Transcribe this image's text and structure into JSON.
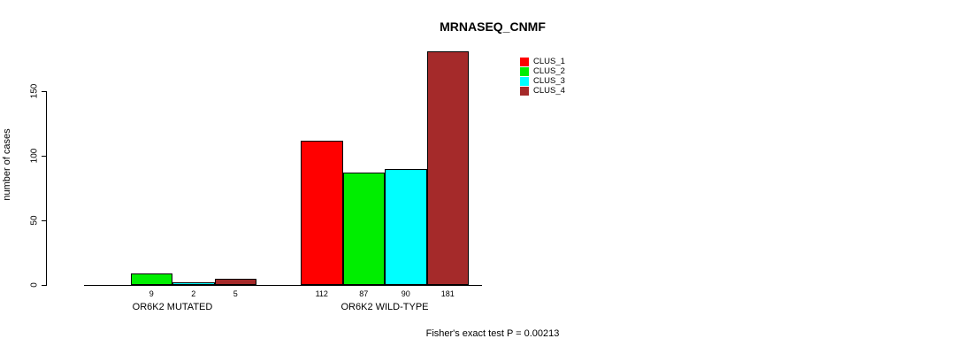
{
  "title": "MRNASEQ_CNMF",
  "footer": "Fisher's exact test P = 0.00213",
  "chart_data": {
    "type": "bar",
    "title": "MRNASEQ_CNMF",
    "xlabel": "",
    "ylabel": "number of cases",
    "ylim": [
      0,
      181
    ],
    "yticks": [
      0,
      50,
      100,
      150
    ],
    "grid": false,
    "legend_position": "top-right",
    "series": [
      {
        "name": "CLUS_1",
        "color": "#ff0000"
      },
      {
        "name": "CLUS_2",
        "color": "#00ee00"
      },
      {
        "name": "CLUS_3",
        "color": "#00ffff"
      },
      {
        "name": "CLUS_4",
        "color": "#a52a2a"
      }
    ],
    "groups": [
      {
        "label": "OR6K2 MUTATED",
        "values": [
          0,
          9,
          2,
          5
        ],
        "bar_labels": [
          "",
          "9",
          "2",
          "5"
        ]
      },
      {
        "label": "OR6K2 WILD-TYPE",
        "values": [
          112,
          87,
          90,
          181
        ],
        "bar_labels": [
          "112",
          "87",
          "90",
          "181"
        ]
      }
    ],
    "annotation": "Fisher's exact test P = 0.00213"
  }
}
